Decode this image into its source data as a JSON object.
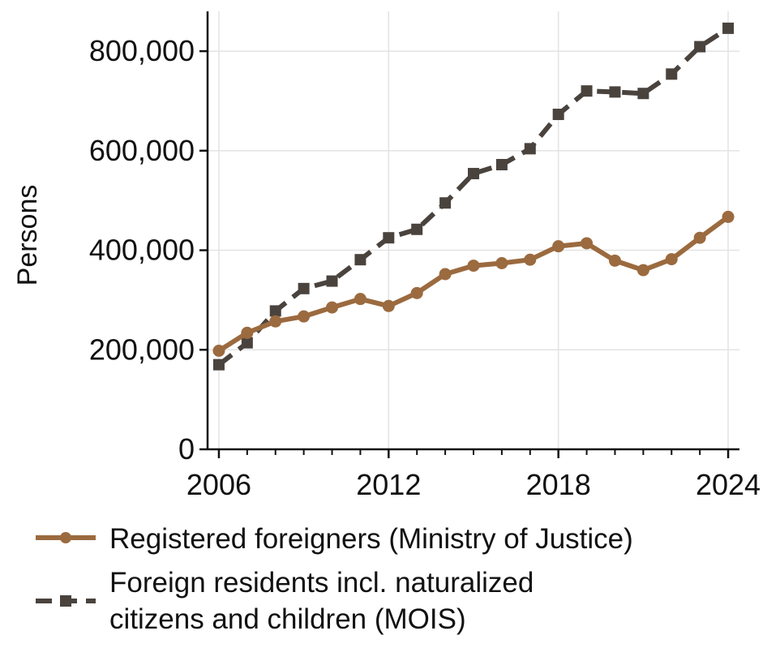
{
  "chart_data": {
    "type": "line",
    "title": "",
    "xlabel": "",
    "ylabel": "Persons",
    "x": [
      2006,
      2007,
      2008,
      2009,
      2010,
      2011,
      2012,
      2013,
      2014,
      2015,
      2016,
      2017,
      2018,
      2019,
      2020,
      2021,
      2022,
      2023,
      2024
    ],
    "xlim": [
      2005.6,
      2024.4
    ],
    "ylim": [
      0,
      880000
    ],
    "xticks": [
      2006,
      2012,
      2018,
      2024
    ],
    "xtick_labels": [
      "2006",
      "2012",
      "2018",
      "2024"
    ],
    "yticks": [
      0,
      200000,
      400000,
      600000,
      800000
    ],
    "ytick_labels": [
      "0",
      "200,000",
      "400,000",
      "600,000",
      "800,000"
    ],
    "grid": true,
    "legend_position": "bottom",
    "series": [
      {
        "name": "Registered foreigners (Ministry of Justice)",
        "color": "#9b6a3f",
        "marker": "circle",
        "line_style": "solid",
        "values": [
          198000,
          234000,
          257000,
          267000,
          285000,
          302000,
          288000,
          314000,
          352000,
          369000,
          374000,
          381000,
          408000,
          414000,
          379000,
          360000,
          382000,
          425000,
          467000
        ]
      },
      {
        "name_lines": [
          "Foreign residents incl. naturalized",
          "citizens and children (MOIS)"
        ],
        "color": "#4a433d",
        "marker": "square",
        "line_style": "dashed",
        "values": [
          170000,
          214000,
          278000,
          323000,
          338000,
          381000,
          425000,
          442000,
          495000,
          554000,
          572000,
          604000,
          673000,
          720000,
          718000,
          715000,
          754000,
          809000,
          846000
        ]
      }
    ]
  }
}
